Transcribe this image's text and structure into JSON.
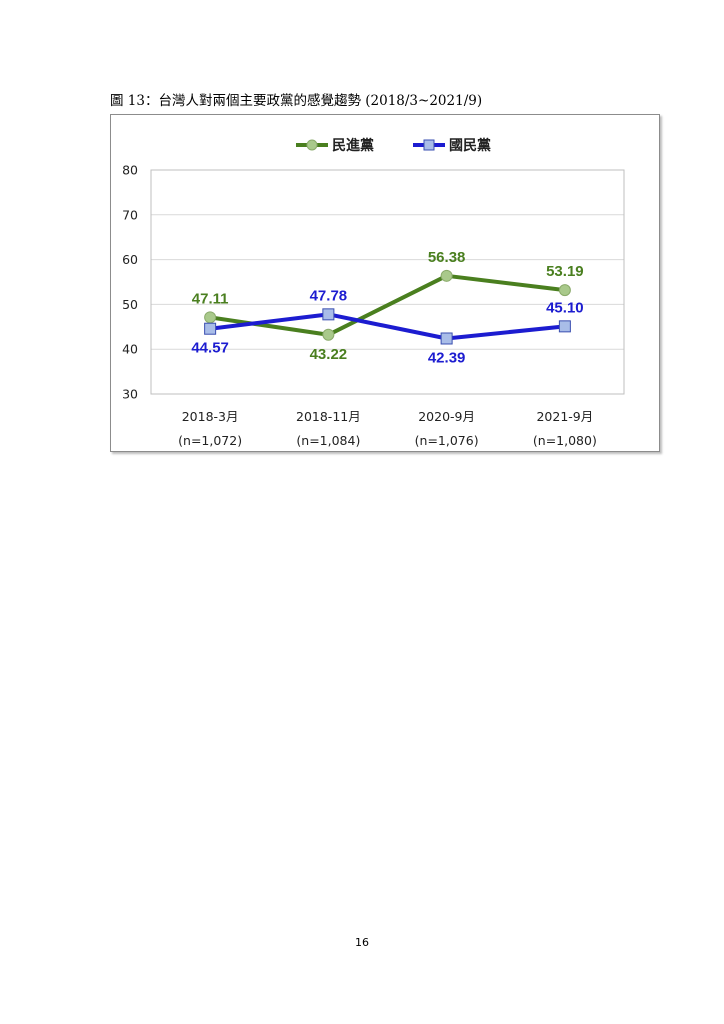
{
  "document": {
    "caption": "圖 13：台灣人對兩個主要政黨的感覺趨勢 (2018/3~2021/9)",
    "page_number": "16"
  },
  "colors": {
    "dpp_line": "#4a7f1f",
    "dpp_marker": "#a9c98b",
    "kmt_line": "#1c1cd0",
    "kmt_marker": "#a9bde8",
    "grid": "#d9d9d9",
    "axis": "#bfbfbf"
  },
  "chart_data": {
    "type": "line",
    "title": "",
    "xlabel": "",
    "ylabel": "",
    "categories": [
      "2018-3月",
      "2018-11月",
      "2020-9月",
      "2021-9月"
    ],
    "category_sublabels": [
      "(n=1,072)",
      "(n=1,084)",
      "(n=1,076)",
      "(n=1,080)"
    ],
    "ylim": [
      30,
      80
    ],
    "yticks": [
      "30",
      "40",
      "50",
      "60",
      "70",
      "80"
    ],
    "grid": true,
    "legend_position": "top-center",
    "series": [
      {
        "name": "民進黨",
        "marker": "circle",
        "values": [
          47.11,
          43.22,
          56.38,
          53.19
        ],
        "labels": [
          "47.11",
          "43.22",
          "56.38",
          "53.19"
        ],
        "label_positions": [
          "above",
          "below",
          "above",
          "above"
        ]
      },
      {
        "name": "國民黨",
        "marker": "square",
        "values": [
          44.57,
          47.78,
          42.39,
          45.1
        ],
        "labels": [
          "44.57",
          "47.78",
          "42.39",
          "45.10"
        ],
        "label_positions": [
          "below",
          "above",
          "below",
          "above"
        ]
      }
    ]
  }
}
